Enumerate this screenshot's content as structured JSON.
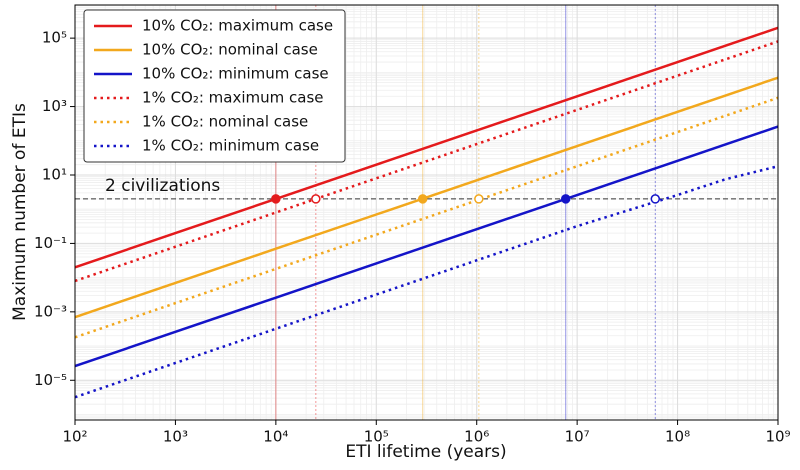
{
  "chart_data": {
    "type": "line",
    "log_x": true,
    "log_y": true,
    "grid": true,
    "legend": "upper left",
    "x_label": "ETI lifetime (years)",
    "y_label": "Maximum number of ETIs",
    "x": [
      100,
      1000,
      10000,
      100000,
      1000000,
      10000000,
      100000000,
      300000000,
      1000000000
    ],
    "series": [
      {
        "name": "10% CO₂: maximum case",
        "color": "#e41a1c",
        "style": "solid",
        "values": [
          0.02,
          0.2,
          2,
          20,
          200,
          2000,
          20000,
          60000,
          200000
        ]
      },
      {
        "name": "10% CO₂: nominal case",
        "color": "#f2a81d",
        "style": "solid",
        "values": [
          0.0007,
          0.007,
          0.07,
          0.7,
          7,
          70,
          700,
          2100,
          7000
        ]
      },
      {
        "name": "10% CO₂: minimum case",
        "color": "#1414c8",
        "style": "solid",
        "values": [
          2.6e-05,
          0.00026,
          0.0026,
          0.026,
          0.26,
          2.6,
          26,
          78,
          260
        ]
      },
      {
        "name": "1% CO₂: maximum case",
        "color": "#e41a1c",
        "style": "dotted",
        "values": [
          0.008,
          0.08,
          0.8,
          8,
          80,
          800,
          8000,
          24000,
          80000
        ]
      },
      {
        "name": "1% CO₂: nominal case",
        "color": "#f2a81d",
        "style": "dotted",
        "values": [
          0.00018,
          0.0018,
          0.018,
          0.18,
          1.8,
          18,
          180,
          540,
          1800
        ]
      },
      {
        "name": "1% CO₂: minimum case",
        "color": "#1414c8",
        "style": "dotted",
        "values": [
          3.2e-06,
          3.2e-05,
          0.00032,
          0.0032,
          0.032,
          0.32,
          2.6,
          7.5,
          18
        ]
      }
    ],
    "threshold": 2,
    "threshold_label": "2 civilizations",
    "markers": [
      {
        "x": 10000,
        "y": 2,
        "color": "#e41a1c",
        "filled": true
      },
      {
        "x": 25000,
        "y": 2,
        "color": "#e41a1c",
        "filled": false
      },
      {
        "x": 290000,
        "y": 2,
        "color": "#f2a81d",
        "filled": true
      },
      {
        "x": 1050000,
        "y": 2,
        "color": "#f2a81d",
        "filled": false
      },
      {
        "x": 7700000,
        "y": 2,
        "color": "#1414c8",
        "filled": true
      },
      {
        "x": 60000000,
        "y": 2,
        "color": "#1414c8",
        "filled": false
      }
    ],
    "xlim": [
      100,
      1000000000
    ],
    "ylim": [
      6.9e-07,
      930000
    ],
    "xticks": [
      {
        "value": 100,
        "label": "10²"
      },
      {
        "value": 1000,
        "label": "10³"
      },
      {
        "value": 10000,
        "label": "10⁴"
      },
      {
        "value": 100000,
        "label": "10⁵"
      },
      {
        "value": 1000000,
        "label": "10⁶"
      },
      {
        "value": 10000000,
        "label": "10⁷"
      },
      {
        "value": 100000000,
        "label": "10⁸"
      },
      {
        "value": 1000000000,
        "label": "10⁹"
      }
    ],
    "yticks": [
      {
        "value": 1e-05,
        "label": "10⁻⁵"
      },
      {
        "value": 0.001,
        "label": "10⁻³"
      },
      {
        "value": 0.1,
        "label": "10⁻¹"
      },
      {
        "value": 10,
        "label": "10¹"
      },
      {
        "value": 1000,
        "label": "10³"
      },
      {
        "value": 100000,
        "label": "10⁵"
      }
    ]
  }
}
